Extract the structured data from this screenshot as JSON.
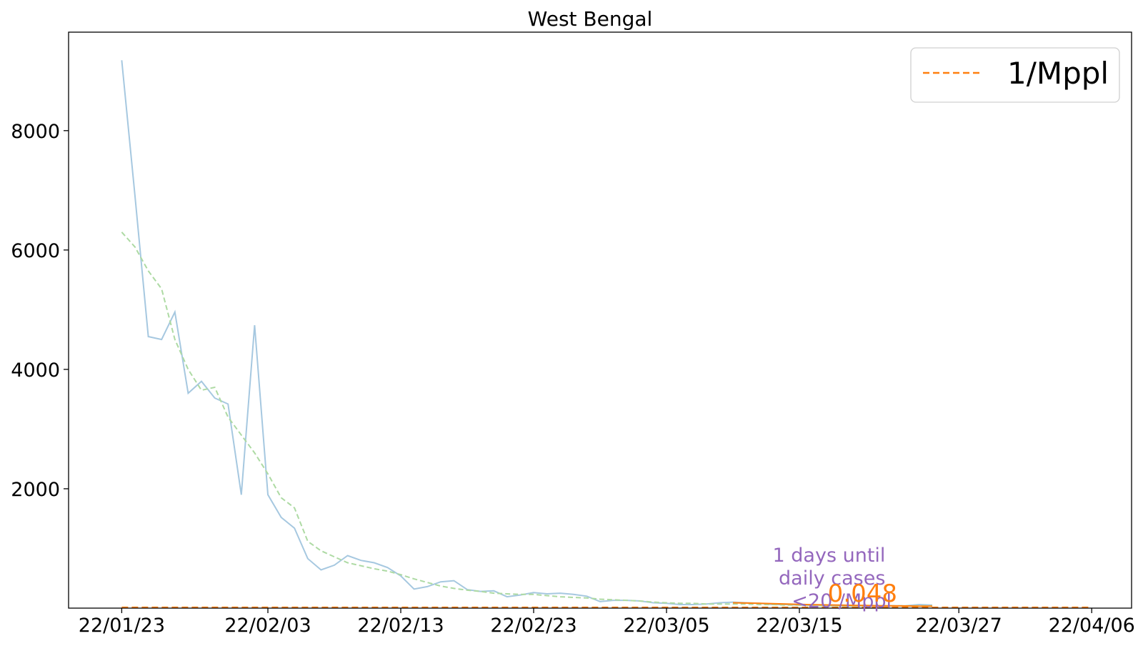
{
  "chart_data": {
    "type": "line",
    "title": "West Bengal",
    "xlabel": "",
    "ylabel": "",
    "x_ticks": [
      "22/01/23",
      "22/02/03",
      "22/02/13",
      "22/02/23",
      "22/03/05",
      "22/03/15",
      "22/03/27",
      "22/04/06"
    ],
    "y_ticks": [
      2000,
      4000,
      6000,
      8000
    ],
    "xlim": [
      "2022-01-19",
      "2022-04-09"
    ],
    "ylim": [
      0,
      9650
    ],
    "grid": false,
    "legend": {
      "placement": "top-right",
      "entries": [
        {
          "label": "1/Mppl",
          "color": "#ff7f0e",
          "style": "dashed"
        }
      ]
    },
    "series": [
      {
        "color": "#a6c8e0",
        "style": "solid",
        "x": [
          "2022-01-23",
          "2022-01-24",
          "2022-01-25",
          "2022-01-26",
          "2022-01-27",
          "2022-01-28",
          "2022-01-29",
          "2022-01-30",
          "2022-01-31",
          "2022-02-01",
          "2022-02-02",
          "2022-02-03",
          "2022-02-04",
          "2022-02-05",
          "2022-02-06",
          "2022-02-07",
          "2022-02-08",
          "2022-02-09",
          "2022-02-10",
          "2022-02-11",
          "2022-02-12",
          "2022-02-13",
          "2022-02-14",
          "2022-02-15",
          "2022-02-16",
          "2022-02-17",
          "2022-02-18",
          "2022-02-19",
          "2022-02-20",
          "2022-02-21",
          "2022-02-22",
          "2022-02-23",
          "2022-02-24",
          "2022-02-25",
          "2022-02-26",
          "2022-02-27",
          "2022-02-28",
          "2022-03-01",
          "2022-03-02",
          "2022-03-03",
          "2022-03-04",
          "2022-03-05",
          "2022-03-06",
          "2022-03-07",
          "2022-03-08",
          "2022-03-09",
          "2022-03-10",
          "2022-03-11",
          "2022-03-12",
          "2022-03-13",
          "2022-03-14",
          "2022-03-15",
          "2022-03-16",
          "2022-03-17",
          "2022-03-18",
          "2022-03-19",
          "2022-03-20",
          "2022-03-21",
          "2022-03-22",
          "2022-03-23",
          "2022-03-24",
          "2022-03-25"
        ],
        "values": [
          9180,
          6900,
          4550,
          4500,
          4960,
          3600,
          3800,
          3520,
          3420,
          1900,
          4740,
          1900,
          1520,
          1340,
          830,
          640,
          720,
          880,
          800,
          760,
          680,
          540,
          320,
          360,
          440,
          460,
          310,
          280,
          290,
          190,
          220,
          260,
          240,
          250,
          230,
          200,
          110,
          130,
          130,
          120,
          90,
          80,
          60,
          60,
          70,
          90,
          100,
          90,
          80,
          60,
          60,
          50,
          40,
          40,
          40,
          30,
          40,
          30,
          40,
          40,
          60,
          50
        ]
      },
      {
        "color": "#addaa3",
        "style": "dashed",
        "x": [
          "2022-01-23",
          "2022-01-24",
          "2022-01-25",
          "2022-01-26",
          "2022-01-27",
          "2022-01-28",
          "2022-01-29",
          "2022-01-30",
          "2022-01-31",
          "2022-02-01",
          "2022-02-02",
          "2022-02-03",
          "2022-02-04",
          "2022-02-05",
          "2022-02-06",
          "2022-02-07",
          "2022-02-08",
          "2022-02-09",
          "2022-02-10",
          "2022-02-11",
          "2022-02-12",
          "2022-02-13",
          "2022-02-14",
          "2022-02-15",
          "2022-02-16",
          "2022-02-17",
          "2022-02-18",
          "2022-02-19",
          "2022-02-20",
          "2022-02-21",
          "2022-02-22",
          "2022-02-23",
          "2022-02-24",
          "2022-02-25",
          "2022-02-26",
          "2022-02-27",
          "2022-02-28",
          "2022-03-01",
          "2022-03-02",
          "2022-03-03",
          "2022-03-04",
          "2022-03-05",
          "2022-03-06",
          "2022-03-07",
          "2022-03-08",
          "2022-03-09",
          "2022-03-10",
          "2022-03-11",
          "2022-03-12",
          "2022-03-13",
          "2022-03-14",
          "2022-03-15",
          "2022-03-16",
          "2022-03-17",
          "2022-03-18",
          "2022-03-19",
          "2022-03-20",
          "2022-03-21",
          "2022-03-22",
          "2022-03-23",
          "2022-03-24",
          "2022-03-25"
        ],
        "values": [
          6300,
          6050,
          5650,
          5350,
          4500,
          4000,
          3650,
          3700,
          3200,
          2900,
          2600,
          2250,
          1850,
          1680,
          1120,
          960,
          860,
          760,
          710,
          660,
          620,
          560,
          490,
          430,
          370,
          330,
          300,
          280,
          250,
          240,
          230,
          230,
          210,
          190,
          180,
          170,
          150,
          140,
          130,
          120,
          100,
          90,
          80,
          80,
          70,
          70,
          70,
          70,
          60,
          60,
          50,
          50,
          50,
          40,
          40,
          40,
          40,
          40,
          40,
          40,
          40,
          40
        ]
      },
      {
        "color": "#ff7f0e",
        "style": "solid",
        "x": [
          "2022-03-10",
          "2022-03-11",
          "2022-03-12",
          "2022-03-13",
          "2022-03-14",
          "2022-03-15",
          "2022-03-16",
          "2022-03-17",
          "2022-03-18",
          "2022-03-19",
          "2022-03-20",
          "2022-03-21",
          "2022-03-22",
          "2022-03-23",
          "2022-03-24",
          "2022-03-25"
        ],
        "values": [
          90,
          85,
          80,
          75,
          68,
          62,
          58,
          54,
          50,
          47,
          44,
          41,
          38,
          36,
          34,
          32
        ]
      },
      {
        "color": "#ff7f0e",
        "style": "dashed",
        "x": [
          "2022-01-23",
          "2022-04-06"
        ],
        "values": [
          10,
          10
        ]
      }
    ],
    "annotations": [
      {
        "text_lines": [
          "1 days until",
          "daily cases",
          "<20 /Mppl"
        ],
        "color": "#9467bd"
      },
      {
        "text": "0.048",
        "color": "#ff7f0e"
      }
    ]
  }
}
